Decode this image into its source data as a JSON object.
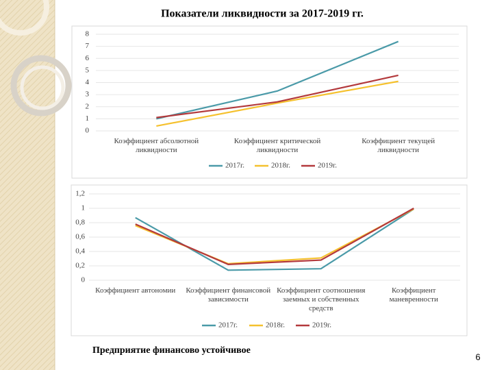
{
  "title": "Показатели ликвидности за 2017-2019 гг.",
  "conclusion": "Предприятие финансово устойчивое",
  "page_number": "6",
  "chart_data": [
    {
      "type": "line",
      "categories": [
        "Коэффициент абсолютной ликвидности",
        "Коэффициент критической ликвидности",
        "Коэффициент текущей ликвидности"
      ],
      "series": [
        {
          "name": "2017г.",
          "color": "#4a9aa8",
          "values": [
            1.0,
            3.3,
            7.4
          ]
        },
        {
          "name": "2018г.",
          "color": "#f5c12e",
          "values": [
            0.4,
            2.3,
            4.1
          ]
        },
        {
          "name": "2019г.",
          "color": "#b3393c",
          "values": [
            1.1,
            2.4,
            4.6
          ]
        }
      ],
      "ylim": [
        0,
        8
      ],
      "yticks": [
        0,
        1,
        2,
        3,
        4,
        5,
        6,
        7,
        8
      ],
      "grid": true,
      "legend": "bottom"
    },
    {
      "type": "line",
      "categories": [
        "Коэффициент автономии",
        "Коэффициент финансовой зависимости",
        "Коэффициент соотношения заемных и собственных средств",
        "Коэффициент маневренности"
      ],
      "series": [
        {
          "name": "2017г.",
          "color": "#4a9aa8",
          "values": [
            0.87,
            0.14,
            0.16,
            0.99
          ]
        },
        {
          "name": "2018г.",
          "color": "#f5c12e",
          "values": [
            0.76,
            0.23,
            0.31,
            0.99
          ]
        },
        {
          "name": "2019г.",
          "color": "#b3393c",
          "values": [
            0.78,
            0.22,
            0.28,
            1.0
          ]
        }
      ],
      "ylim": [
        0,
        1.2
      ],
      "yticks": [
        0,
        {
          "value": 0.2,
          "label": "0,2"
        },
        {
          "value": 0.4,
          "label": "0,4"
        },
        {
          "value": 0.6,
          "label": "0,6"
        },
        {
          "value": 0.8,
          "label": "0,8"
        },
        1,
        {
          "value": 1.2,
          "label": "1,2"
        }
      ],
      "grid": true,
      "legend": "bottom"
    }
  ]
}
